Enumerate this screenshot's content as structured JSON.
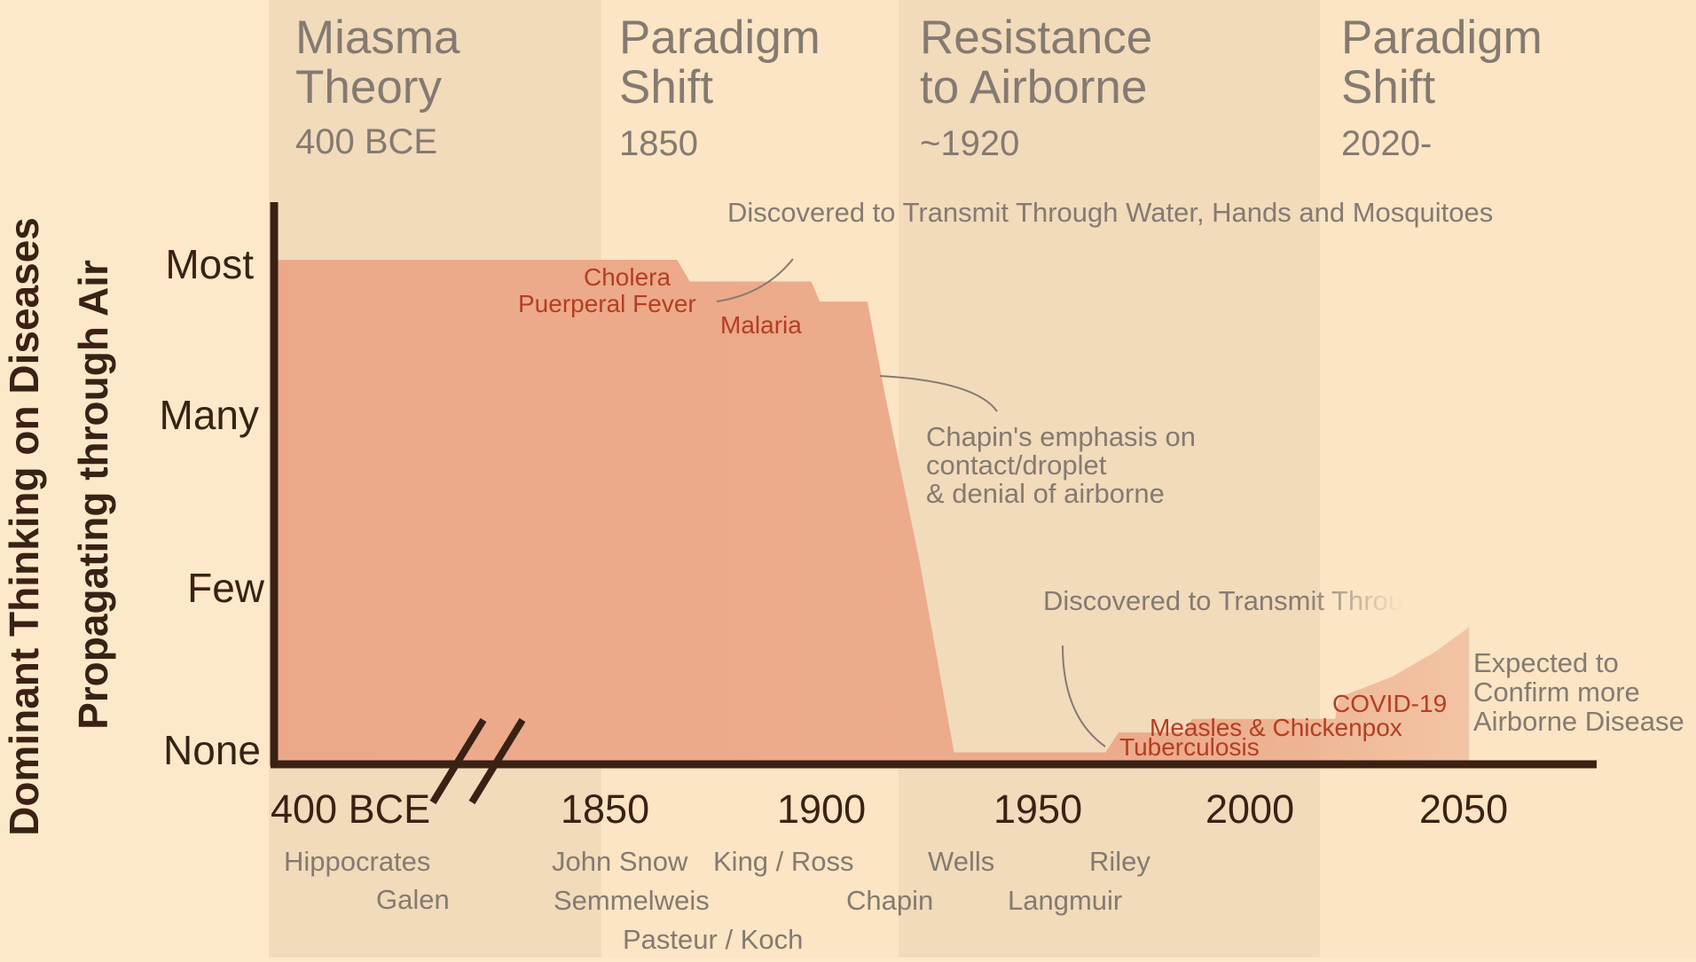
{
  "colors": {
    "background": "#fde9c9",
    "band_light": "#fbe5c4",
    "band_dark": "#f1dbbb",
    "area_fill": "#eca989",
    "axis": "#3a2114",
    "annotation_text": "#857a71",
    "disease_text": "#b53d22"
  },
  "eras": [
    {
      "title_line1": "Miasma",
      "title_line2": "Theory",
      "year": "400 BCE"
    },
    {
      "title_line1": "Paradigm",
      "title_line2": "Shift",
      "year": "1850"
    },
    {
      "title_line1": "Resistance",
      "title_line2": "to Airborne",
      "year": "~1920"
    },
    {
      "title_line1": "Paradigm",
      "title_line2": "Shift",
      "year": "2020-"
    }
  ],
  "chart_data": {
    "type": "area",
    "ylabel_line1": "Dominant Thinking on Diseases",
    "ylabel_line2": "Propagating through Air",
    "y_levels": [
      "None",
      "Few",
      "Many",
      "Most"
    ],
    "x_ticks": [
      "400 BCE",
      "1850",
      "1900",
      "1950",
      "2000",
      "2050"
    ],
    "axis_break_between": [
      "400 BCE",
      "1850"
    ],
    "series": [
      {
        "points": [
          {
            "x": "400 BCE",
            "y": 3.0
          },
          {
            "x": 1865,
            "y": 3.0
          },
          {
            "x": 1868,
            "y": 2.87
          },
          {
            "x": 1896,
            "y": 2.87
          },
          {
            "x": 1898,
            "y": 2.75
          },
          {
            "x": 1909,
            "y": 2.75
          },
          {
            "x": 1913,
            "y": 2.2
          },
          {
            "x": 1921,
            "y": 1.2
          },
          {
            "x": 1929,
            "y": 0.05
          },
          {
            "x": 1964,
            "y": 0.05
          },
          {
            "x": 1967,
            "y": 0.17
          },
          {
            "x": 1982,
            "y": 0.17
          },
          {
            "x": 1984,
            "y": 0.25
          },
          {
            "x": 2017,
            "y": 0.25
          },
          {
            "x": 2018,
            "y": 0.38
          },
          {
            "x": 2030,
            "y": 0.5
          },
          {
            "x": 2040,
            "y": 0.65
          },
          {
            "x": 2048,
            "y": 0.8
          }
        ]
      }
    ],
    "disease_labels": [
      "Cholera",
      "Puerperal Fever",
      "Malaria",
      "Tuberculosis",
      "Measles & Chickenpox",
      "COVID-19"
    ],
    "people": [
      "Hippocrates",
      "Galen",
      "John Snow",
      "Semmelweis",
      "Pasteur / Koch",
      "King / Ross",
      "Chapin",
      "Wells",
      "Langmuir",
      "Riley"
    ],
    "annotations": {
      "water_hands": "Discovered to Transmit Through Water, Hands and Mosquitoes",
      "chapin_line1": "Chapin's emphasis on",
      "chapin_line2": "contact/droplet",
      "chapin_line3": "& denial of airborne",
      "air_transmit": "Discovered to Transmit Throu",
      "expected_line1": "Expected to",
      "expected_line2": "Confirm more",
      "expected_line3": "Airborne Disease"
    }
  }
}
